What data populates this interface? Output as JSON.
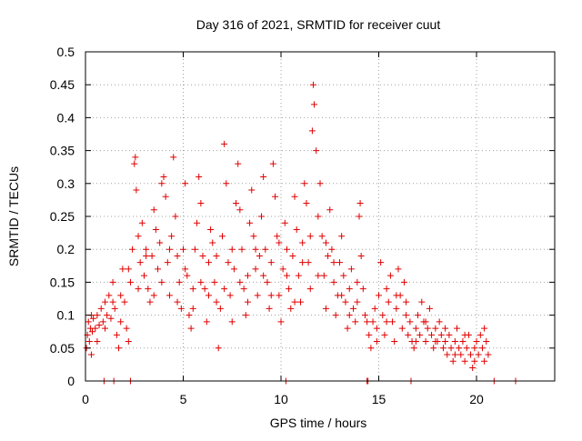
{
  "chart_data": {
    "type": "scatter",
    "title": "Day 316 of 2021, SRMTID for receiver cuut",
    "xlabel": "GPS time / hours",
    "ylabel": "SRMTID / TECUs",
    "xlim": [
      0,
      24
    ],
    "ylim": [
      0,
      0.5
    ],
    "xticks": [
      0,
      5,
      10,
      15,
      20
    ],
    "xtick_labels": [
      "0",
      "5",
      "10",
      "15",
      "20"
    ],
    "yticks": [
      0,
      0.05,
      0.1,
      0.15,
      0.2,
      0.25,
      0.3,
      0.35,
      0.4,
      0.45,
      0.5
    ],
    "ytick_labels": [
      "0",
      "0.05",
      "0.1",
      "0.15",
      "0.2",
      "0.25",
      "0.3",
      "0.35",
      "0.4",
      "0.45",
      "0.5"
    ],
    "grid": true,
    "marker": "+",
    "color": "#e00000",
    "series": [
      {
        "name": "SRMTID",
        "points": [
          [
            0.05,
            0.05
          ],
          [
            0.1,
            0.07
          ],
          [
            0.15,
            0.09
          ],
          [
            0.2,
            0.06
          ],
          [
            0.25,
            0.08
          ],
          [
            0.3,
            0.1
          ],
          [
            0.35,
            0.075
          ],
          [
            0.4,
            0.095
          ],
          [
            0.5,
            0.08
          ],
          [
            0.6,
            0.1
          ],
          [
            0.7,
            0.085
          ],
          [
            0.8,
            0.11
          ],
          [
            0.9,
            0.09
          ],
          [
            1.0,
            0.12
          ],
          [
            1.1,
            0.1
          ],
          [
            1.2,
            0.13
          ],
          [
            1.3,
            0.095
          ],
          [
            1.4,
            0.15
          ],
          [
            1.5,
            0.11
          ],
          [
            1.6,
            0.07
          ],
          [
            1.7,
            0.05
          ],
          [
            1.8,
            0.13
          ],
          [
            1.9,
            0.17
          ],
          [
            2.0,
            0.12
          ],
          [
            2.1,
            0.08
          ],
          [
            2.2,
            0.06
          ],
          [
            2.3,
            0.15
          ],
          [
            2.4,
            0.2
          ],
          [
            2.5,
            0.33
          ],
          [
            2.55,
            0.34
          ],
          [
            2.6,
            0.29
          ],
          [
            2.7,
            0.22
          ],
          [
            2.8,
            0.18
          ],
          [
            2.9,
            0.24
          ],
          [
            3.0,
            0.16
          ],
          [
            3.1,
            0.2
          ],
          [
            3.2,
            0.14
          ],
          [
            3.3,
            0.12
          ],
          [
            3.4,
            0.19
          ],
          [
            3.5,
            0.26
          ],
          [
            3.6,
            0.23
          ],
          [
            3.7,
            0.17
          ],
          [
            3.8,
            0.21
          ],
          [
            3.9,
            0.3
          ],
          [
            4.0,
            0.31
          ],
          [
            4.1,
            0.28
          ],
          [
            4.2,
            0.18
          ],
          [
            4.3,
            0.13
          ],
          [
            4.4,
            0.22
          ],
          [
            4.5,
            0.34
          ],
          [
            4.6,
            0.25
          ],
          [
            4.7,
            0.19
          ],
          [
            4.8,
            0.15
          ],
          [
            4.9,
            0.11
          ],
          [
            5.0,
            0.2
          ],
          [
            5.1,
            0.3
          ],
          [
            5.2,
            0.16
          ],
          [
            5.3,
            0.1
          ],
          [
            5.4,
            0.08
          ],
          [
            5.5,
            0.14
          ],
          [
            5.6,
            0.2
          ],
          [
            5.7,
            0.24
          ],
          [
            5.8,
            0.31
          ],
          [
            5.9,
            0.27
          ],
          [
            6.0,
            0.19
          ],
          [
            6.1,
            0.14
          ],
          [
            6.2,
            0.09
          ],
          [
            6.3,
            0.18
          ],
          [
            6.4,
            0.23
          ],
          [
            6.5,
            0.21
          ],
          [
            6.6,
            0.15
          ],
          [
            6.7,
            0.12
          ],
          [
            6.8,
            0.05
          ],
          [
            6.9,
            0.11
          ],
          [
            7.0,
            0.22
          ],
          [
            7.1,
            0.36
          ],
          [
            7.2,
            0.3
          ],
          [
            7.3,
            0.18
          ],
          [
            7.4,
            0.13
          ],
          [
            7.5,
            0.09
          ],
          [
            7.6,
            0.17
          ],
          [
            7.7,
            0.27
          ],
          [
            7.8,
            0.33
          ],
          [
            7.9,
            0.26
          ],
          [
            8.0,
            0.2
          ],
          [
            8.1,
            0.14
          ],
          [
            8.2,
            0.1
          ],
          [
            8.3,
            0.16
          ],
          [
            8.4,
            0.24
          ],
          [
            8.5,
            0.29
          ],
          [
            8.6,
            0.22
          ],
          [
            8.7,
            0.17
          ],
          [
            8.8,
            0.13
          ],
          [
            8.9,
            0.19
          ],
          [
            9.0,
            0.25
          ],
          [
            9.1,
            0.31
          ],
          [
            9.2,
            0.2
          ],
          [
            9.3,
            0.15
          ],
          [
            9.4,
            0.11
          ],
          [
            9.5,
            0.18
          ],
          [
            9.6,
            0.33
          ],
          [
            9.7,
            0.28
          ],
          [
            9.8,
            0.22
          ],
          [
            9.9,
            0.13
          ],
          [
            10.0,
            0.09
          ],
          [
            10.1,
            0.17
          ],
          [
            10.2,
            0.24
          ],
          [
            10.3,
            0.2
          ],
          [
            10.4,
            0.14
          ],
          [
            10.5,
            0.11
          ],
          [
            10.6,
            0.19
          ],
          [
            10.7,
            0.28
          ],
          [
            10.8,
            0.23
          ],
          [
            10.9,
            0.16
          ],
          [
            11.0,
            0.12
          ],
          [
            11.1,
            0.21
          ],
          [
            11.2,
            0.3
          ],
          [
            11.3,
            0.27
          ],
          [
            11.4,
            0.18
          ],
          [
            11.5,
            0.14
          ],
          [
            11.6,
            0.38
          ],
          [
            11.65,
            0.45
          ],
          [
            11.7,
            0.42
          ],
          [
            11.8,
            0.35
          ],
          [
            11.9,
            0.25
          ],
          [
            12.0,
            0.3
          ],
          [
            12.1,
            0.22
          ],
          [
            12.2,
            0.16
          ],
          [
            12.3,
            0.11
          ],
          [
            12.4,
            0.19
          ],
          [
            12.5,
            0.26
          ],
          [
            12.6,
            0.2
          ],
          [
            12.7,
            0.15
          ],
          [
            12.8,
            0.1
          ],
          [
            12.9,
            0.13
          ],
          [
            13.0,
            0.18
          ],
          [
            13.1,
            0.22
          ],
          [
            13.2,
            0.16
          ],
          [
            13.3,
            0.12
          ],
          [
            13.4,
            0.08
          ],
          [
            13.5,
            0.14
          ],
          [
            13.6,
            0.17
          ],
          [
            13.7,
            0.11
          ],
          [
            13.8,
            0.09
          ],
          [
            13.9,
            0.15
          ],
          [
            14.0,
            0.25
          ],
          [
            14.05,
            0.27
          ],
          [
            14.1,
            0.19
          ],
          [
            14.2,
            0.14
          ],
          [
            14.3,
            0.1
          ],
          [
            14.5,
            0.07
          ],
          [
            14.6,
            0.05
          ],
          [
            14.7,
            0.09
          ],
          [
            14.8,
            0.11
          ],
          [
            14.9,
            0.08
          ],
          [
            15.0,
            0.13
          ],
          [
            15.1,
            0.18
          ],
          [
            15.2,
            0.1
          ],
          [
            15.3,
            0.07
          ],
          [
            15.4,
            0.14
          ],
          [
            15.5,
            0.12
          ],
          [
            15.6,
            0.16
          ],
          [
            15.7,
            0.09
          ],
          [
            15.8,
            0.06
          ],
          [
            15.9,
            0.11
          ],
          [
            16.0,
            0.17
          ],
          [
            16.1,
            0.13
          ],
          [
            16.2,
            0.08
          ],
          [
            16.3,
            0.15
          ],
          [
            16.4,
            0.1
          ],
          [
            16.5,
            0.07
          ],
          [
            16.6,
            0.09
          ],
          [
            16.7,
            0.06
          ],
          [
            16.8,
            0.05
          ],
          [
            16.9,
            0.08
          ],
          [
            17.0,
            0.1
          ],
          [
            17.1,
            0.07
          ],
          [
            17.2,
            0.12
          ],
          [
            17.3,
            0.09
          ],
          [
            17.4,
            0.06
          ],
          [
            17.5,
            0.08
          ],
          [
            17.6,
            0.11
          ],
          [
            17.7,
            0.07
          ],
          [
            17.8,
            0.05
          ],
          [
            17.9,
            0.08
          ],
          [
            18.0,
            0.06
          ],
          [
            18.1,
            0.09
          ],
          [
            18.2,
            0.07
          ],
          [
            18.3,
            0.05
          ],
          [
            18.4,
            0.06
          ],
          [
            18.5,
            0.04
          ],
          [
            18.6,
            0.07
          ],
          [
            18.7,
            0.05
          ],
          [
            18.8,
            0.03
          ],
          [
            18.9,
            0.06
          ],
          [
            19.0,
            0.08
          ],
          [
            19.1,
            0.05
          ],
          [
            19.2,
            0.04
          ],
          [
            19.3,
            0.06
          ],
          [
            19.4,
            0.03
          ],
          [
            19.5,
            0.05
          ],
          [
            19.6,
            0.07
          ],
          [
            19.7,
            0.04
          ],
          [
            19.8,
            0.02
          ],
          [
            19.9,
            0.05
          ],
          [
            20.0,
            0.06
          ],
          [
            20.1,
            0.04
          ],
          [
            20.2,
            0.07
          ],
          [
            20.3,
            0.05
          ],
          [
            20.4,
            0.03
          ],
          [
            20.5,
            0.06
          ],
          [
            20.6,
            0.04
          ],
          [
            0.3,
            0.04
          ],
          [
            0.6,
            0.06
          ],
          [
            1.0,
            0.08
          ],
          [
            1.4,
            0.12
          ],
          [
            1.8,
            0.09
          ],
          [
            2.2,
            0.17
          ],
          [
            2.7,
            0.14
          ],
          [
            3.1,
            0.19
          ],
          [
            3.5,
            0.13
          ],
          [
            3.9,
            0.15
          ],
          [
            4.3,
            0.2
          ],
          [
            4.7,
            0.12
          ],
          [
            5.1,
            0.17
          ],
          [
            5.5,
            0.11
          ],
          [
            5.9,
            0.15
          ],
          [
            6.3,
            0.13
          ],
          [
            6.7,
            0.19
          ],
          [
            7.1,
            0.14
          ],
          [
            7.5,
            0.2
          ],
          [
            7.9,
            0.15
          ],
          [
            8.3,
            0.12
          ],
          [
            8.7,
            0.2
          ],
          [
            9.1,
            0.16
          ],
          [
            9.5,
            0.13
          ],
          [
            9.9,
            0.21
          ],
          [
            10.3,
            0.16
          ],
          [
            10.7,
            0.12
          ],
          [
            11.1,
            0.18
          ],
          [
            11.5,
            0.22
          ],
          [
            11.9,
            0.16
          ],
          [
            12.3,
            0.21
          ],
          [
            12.7,
            0.18
          ],
          [
            13.1,
            0.13
          ],
          [
            13.5,
            0.1
          ],
          [
            13.9,
            0.12
          ],
          [
            14.4,
            0.09
          ],
          [
            14.9,
            0.06
          ],
          [
            15.4,
            0.09
          ],
          [
            15.9,
            0.13
          ],
          [
            16.4,
            0.12
          ],
          [
            16.9,
            0.06
          ],
          [
            17.4,
            0.09
          ],
          [
            17.9,
            0.06
          ],
          [
            18.4,
            0.08
          ],
          [
            18.9,
            0.04
          ],
          [
            19.4,
            0.07
          ],
          [
            19.9,
            0.03
          ],
          [
            20.4,
            0.08
          ],
          [
            0.95,
            0.0
          ],
          [
            1.45,
            0.0
          ],
          [
            2.3,
            0.0
          ],
          [
            10.25,
            0.0
          ],
          [
            14.4,
            0.0
          ],
          [
            14.45,
            0.0
          ],
          [
            16.65,
            0.0
          ],
          [
            20.9,
            0.0
          ],
          [
            22.0,
            0.0
          ]
        ]
      }
    ]
  }
}
